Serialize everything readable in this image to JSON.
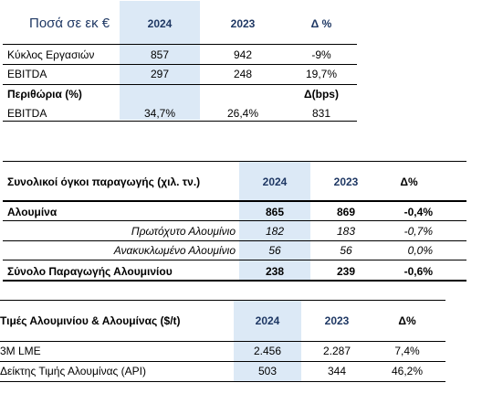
{
  "table1": {
    "header": {
      "label": "Ποσά σε εκ €",
      "col1": "2024",
      "col2": "2023",
      "col3": "Δ %"
    },
    "rows": [
      {
        "label": "Κύκλος Εργασιών",
        "v1": "857",
        "v2": "942",
        "v3": "-9%"
      },
      {
        "label": "EBITDA",
        "v1": "297",
        "v2": "248",
        "v3": "19,7%"
      }
    ],
    "subheader": {
      "label": "Περιθώρια (%)",
      "col3": "Δ(bps)"
    },
    "margin_row": {
      "label": "EBITDA",
      "v1": "34,7%",
      "v2": "26,4%",
      "v3": "831"
    }
  },
  "table2": {
    "header": {
      "label": "Συνολικοί όγκοι παραγωγής (χιλ. τν.)",
      "col1": "2024",
      "col2": "2023",
      "col3": "Δ%"
    },
    "rows": [
      {
        "label": "Αλουμίνα",
        "v1": "865",
        "v2": "869",
        "v3": "-0,4%"
      },
      {
        "label": "Πρωτόχυτο Αλουμίνιο",
        "v1": "182",
        "v2": "183",
        "v3": "-0,7%"
      },
      {
        "label": "Ανακυκλωμένο Αλουμίνιο",
        "v1": "56",
        "v2": "56",
        "v3": "0,0%"
      },
      {
        "label": "Σύνολο Παραγωγής Αλουμινίου",
        "v1": "238",
        "v2": "239",
        "v3": "-0,6%"
      }
    ]
  },
  "table3": {
    "header": {
      "label": "Τιμές Αλουμινίου & Αλουμίνας ($/t)",
      "col1": "2024",
      "col2": "2023",
      "col3": "Δ%"
    },
    "rows": [
      {
        "label": "3M LME",
        "v1": "2.456",
        "v2": "2.287",
        "v3": "7,4%"
      },
      {
        "label": "Δείκτης Τιμής Αλουμίνας (API)",
        "v1": "503",
        "v2": "344",
        "v3": "46,2%"
      }
    ]
  }
}
